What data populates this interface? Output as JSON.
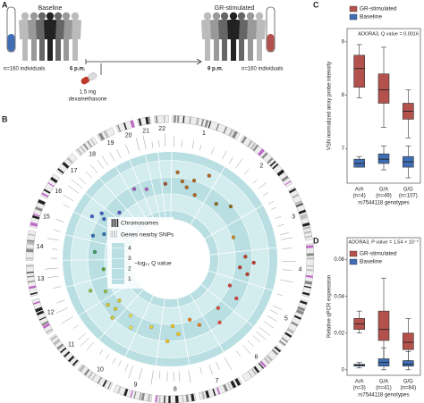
{
  "panel_labels": [
    "A",
    "B",
    "C",
    "D"
  ],
  "schematic": {
    "baseline": "Baseline",
    "stimulated": "GR-stimulated",
    "n_left": "n=160 individuals",
    "n_right": "n=160 individuals",
    "time_start": "6 p.m.",
    "time_end": "9 p.m.",
    "dose": "1.5 mg",
    "drug": "dexamethasone"
  },
  "circos": {
    "chromosomes": [
      "1",
      "2",
      "3",
      "4",
      "5",
      "6",
      "7",
      "8",
      "9",
      "10",
      "11",
      "12",
      "13",
      "14",
      "15",
      "16",
      "17",
      "18",
      "19",
      "20",
      "21",
      "22"
    ],
    "colors": [
      "#b5651d",
      "#8c6d1f",
      "#c98a2b",
      "#c0392b",
      "#d64541",
      "#e74c3c",
      "#e67e22",
      "#f0c419",
      "#e8d23a",
      "#f1e05a",
      "#d4c72a",
      "#8fbf3f",
      "#5aa83c",
      "#3a9a5e",
      "#2f6fb5",
      "#3d5fc4",
      "#5b4fc9",
      "#7d4fc9",
      "#9b59b6",
      "#b05fc0",
      "#c06ac8",
      "#a0522d"
    ],
    "legend": [
      "Chromosomes",
      "Genes nearby SNPs",
      "−log₁₀ Q value"
    ],
    "rlim": [
      0.5,
      4.5
    ],
    "rticks": [
      1,
      2,
      3,
      4
    ],
    "points": {
      "chromosome": [
        "1",
        "1",
        "1",
        "1",
        "1",
        "1",
        "2",
        "2",
        "3",
        "4",
        "4",
        "4",
        "4",
        "5",
        "5",
        "6",
        "6",
        "7",
        "7",
        "8",
        "8",
        "8",
        "9",
        "10",
        "10",
        "11",
        "11",
        "11",
        "11",
        "12",
        "12",
        "13",
        "14",
        "15",
        "15",
        "16",
        "16",
        "16",
        "17",
        "19",
        "20",
        "22"
      ],
      "values": [
        3.3,
        2.8,
        2.5,
        3.0,
        2.2,
        3.6,
        2.4,
        2.9,
        2.1,
        2.6,
        3.1,
        2.3,
        2.8,
        2.0,
        2.7,
        2.2,
        2.9,
        2.4,
        1.9,
        2.6,
        2.1,
        3.0,
        2.3,
        2.8,
        2.2,
        3.0,
        2.5,
        2.0,
        2.7,
        2.4,
        3.2,
        2.1,
        2.6,
        2.9,
        2.3,
        3.4,
        2.7,
        3.0,
        2.2,
        2.8,
        2.5,
        2.6
      ]
    }
  },
  "chart_data": [
    {
      "type": "box",
      "annotation": "ADORA3, Q value = 0.0016",
      "ylabel": "VSN normalized array probe intensity",
      "xlabel": "rs7544118 genotypes",
      "categories": [
        "A/A",
        "G/A",
        "G/G"
      ],
      "category_counts": [
        "(n=4)",
        "(n=49)",
        "(n=107)"
      ],
      "series": [
        {
          "name": "GR-stimulated",
          "color": "#b3514c",
          "values": [
            [
              7.95,
              8.15,
              8.5,
              8.75,
              8.95
            ],
            [
              7.4,
              7.85,
              8.1,
              8.4,
              8.9
            ],
            [
              7.2,
              7.55,
              7.7,
              7.85,
              8.1
            ]
          ]
        },
        {
          "name": "Baseline",
          "color": "#3f6eb5",
          "values": [
            [
              6.65,
              6.65,
              6.72,
              6.8,
              6.85
            ],
            [
              6.6,
              6.72,
              6.8,
              6.9,
              7.05
            ],
            [
              6.45,
              6.65,
              6.75,
              6.85,
              7.05
            ]
          ]
        }
      ],
      "ylim": [
        6.35,
        9.25
      ],
      "yticks": [
        7,
        8,
        9
      ]
    },
    {
      "type": "box",
      "annotation": "ADORA3, P value = 1.54 × 10⁻⁵",
      "ylabel": "Relative qPCR expression",
      "xlabel": "rs7544118 genotypes",
      "categories": [
        "A/A",
        "G/A",
        "G/G"
      ],
      "category_counts": [
        "(n=3)",
        "(n=41)",
        "(n=84)"
      ],
      "series": [
        {
          "name": "GR-stimulated",
          "color": "#b3514c",
          "values": [
            [
              0.02,
              0.022,
              0.025,
              0.028,
              0.032
            ],
            [
              0.005,
              0.016,
              0.022,
              0.032,
              0.05
            ],
            [
              0.005,
              0.011,
              0.015,
              0.02,
              0.028
            ]
          ]
        },
        {
          "name": "Baseline",
          "color": "#3f6eb5",
          "values": [
            [
              0.001,
              0.002,
              0.0025,
              0.003,
              0.004
            ],
            [
              0,
              0.002,
              0.004,
              0.006,
              0.012
            ],
            [
              0,
              0.002,
              0.003,
              0.005,
              0.01
            ]
          ]
        }
      ],
      "ylim": [
        -0.003,
        0.072
      ],
      "yticks": [
        0,
        0.02,
        0.04,
        0.06
      ]
    }
  ]
}
